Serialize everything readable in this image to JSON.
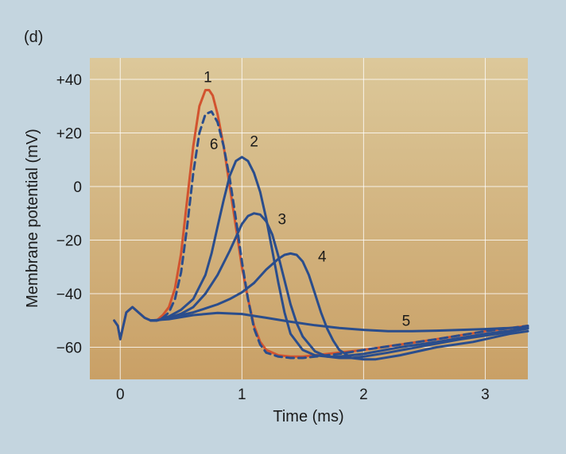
{
  "panel_label": "(d)",
  "chart_data": {
    "type": "line",
    "title": "",
    "xlabel": "Time (ms)",
    "ylabel": "Membrane potential (mV)",
    "xlim": [
      -0.25,
      3.35
    ],
    "ylim": [
      -72,
      48
    ],
    "xticks": [
      0,
      1,
      2,
      3
    ],
    "xtick_labels": [
      "0",
      "1",
      "2",
      "3"
    ],
    "yticks": [
      40,
      20,
      0,
      -20,
      -40,
      -60
    ],
    "ytick_labels": [
      "+40",
      "+20",
      "0",
      "−20",
      "−40",
      "−60"
    ],
    "grid": true,
    "colors": {
      "plot_top": "#dcc89a",
      "plot_bottom": "#c9a066",
      "grid": "#ffffff",
      "curve_red": "#d2532f",
      "curve_blue": "#2a4d8c"
    },
    "series": [
      {
        "name": "1",
        "color": "#d2532f",
        "dash": false,
        "label_at": [
          0.72,
          39
        ],
        "x": [
          -0.05,
          -0.02,
          0.0,
          0.02,
          0.05,
          0.1,
          0.15,
          0.2,
          0.25,
          0.3,
          0.35,
          0.4,
          0.45,
          0.5,
          0.55,
          0.6,
          0.65,
          0.7,
          0.73,
          0.76,
          0.8,
          0.85,
          0.9,
          0.95,
          1.0,
          1.05,
          1.1,
          1.15,
          1.2,
          1.3,
          1.4,
          1.5,
          1.6,
          1.8,
          2.0,
          2.3,
          2.6,
          3.0,
          3.35
        ],
        "y": [
          -50,
          -52,
          -57,
          -53,
          -47,
          -45,
          -47,
          -49,
          -50,
          -50,
          -48,
          -45,
          -38,
          -25,
          -5,
          15,
          30,
          36,
          36,
          34,
          27,
          15,
          0,
          -15,
          -30,
          -42,
          -52,
          -58,
          -61,
          -63,
          -63.5,
          -63.5,
          -63,
          -62,
          -61,
          -59,
          -57,
          -54,
          -52
        ]
      },
      {
        "name": "6",
        "color": "#2a4d8c",
        "dash": true,
        "label_at": [
          0.77,
          14
        ],
        "x": [
          0.25,
          0.3,
          0.35,
          0.4,
          0.45,
          0.5,
          0.55,
          0.6,
          0.65,
          0.7,
          0.75,
          0.8,
          0.85,
          0.9,
          0.95,
          1.0,
          1.05,
          1.1,
          1.15,
          1.2,
          1.3,
          1.4,
          1.5,
          1.6,
          1.8,
          2.0,
          2.3,
          2.6,
          3.0,
          3.35
        ],
        "y": [
          -50,
          -50,
          -49,
          -47,
          -42,
          -32,
          -15,
          5,
          20,
          27,
          28,
          24,
          15,
          3,
          -12,
          -28,
          -42,
          -53,
          -59,
          -62,
          -63.5,
          -64,
          -64,
          -63.5,
          -62.5,
          -61,
          -59,
          -57,
          -54,
          -52
        ]
      },
      {
        "name": "2",
        "color": "#2a4d8c",
        "dash": false,
        "label_at": [
          1.1,
          15
        ],
        "x": [
          0.25,
          0.3,
          0.4,
          0.5,
          0.6,
          0.7,
          0.75,
          0.8,
          0.85,
          0.9,
          0.95,
          1.0,
          1.05,
          1.1,
          1.15,
          1.2,
          1.25,
          1.3,
          1.35,
          1.4,
          1.5,
          1.6,
          1.7,
          1.8,
          1.9,
          2.0,
          2.3,
          2.6,
          3.0,
          3.35
        ],
        "y": [
          -50,
          -50,
          -48.5,
          -46,
          -42,
          -33,
          -25,
          -15,
          -5,
          4,
          9.5,
          11,
          9.5,
          5,
          -2,
          -12,
          -24,
          -36,
          -47,
          -55,
          -61,
          -63,
          -63.5,
          -63.5,
          -63,
          -62.5,
          -60,
          -58,
          -55,
          -53
        ]
      },
      {
        "name": "3",
        "color": "#2a4d8c",
        "dash": false,
        "label_at": [
          1.33,
          -14
        ],
        "x": [
          0.25,
          0.3,
          0.4,
          0.5,
          0.6,
          0.7,
          0.8,
          0.9,
          0.95,
          1.0,
          1.05,
          1.1,
          1.15,
          1.2,
          1.25,
          1.3,
          1.35,
          1.4,
          1.45,
          1.5,
          1.6,
          1.7,
          1.8,
          1.9,
          2.0,
          2.2,
          2.5,
          2.8,
          3.1,
          3.35
        ],
        "y": [
          -50,
          -50,
          -49,
          -47.5,
          -45,
          -40,
          -33,
          -24,
          -19,
          -14,
          -11,
          -10,
          -10.5,
          -13,
          -18,
          -26,
          -35,
          -44,
          -51,
          -56,
          -61.5,
          -63.5,
          -64,
          -64,
          -63.5,
          -62,
          -59.5,
          -57,
          -55,
          -53
        ]
      },
      {
        "name": "4",
        "color": "#2a4d8c",
        "dash": false,
        "label_at": [
          1.66,
          -28
        ],
        "x": [
          0.25,
          0.3,
          0.4,
          0.5,
          0.6,
          0.7,
          0.8,
          0.9,
          1.0,
          1.1,
          1.2,
          1.3,
          1.35,
          1.4,
          1.45,
          1.5,
          1.55,
          1.6,
          1.65,
          1.7,
          1.75,
          1.8,
          1.9,
          2.0,
          2.1,
          2.3,
          2.6,
          2.9,
          3.2,
          3.35
        ],
        "y": [
          -50,
          -50,
          -49,
          -48,
          -47,
          -45.5,
          -44,
          -42,
          -39.5,
          -36,
          -31,
          -27,
          -25.5,
          -25,
          -25.5,
          -28,
          -33,
          -40,
          -47,
          -53,
          -57.5,
          -61,
          -64,
          -64.5,
          -64.5,
          -63,
          -60,
          -58,
          -55,
          -54
        ]
      },
      {
        "name": "5",
        "color": "#2a4d8c",
        "dash": false,
        "label_at": [
          2.35,
          -52
        ],
        "x": [
          -0.05,
          -0.02,
          0.0,
          0.02,
          0.05,
          0.1,
          0.15,
          0.2,
          0.25,
          0.4,
          0.6,
          0.8,
          1.0,
          1.2,
          1.4,
          1.6,
          1.8,
          2.0,
          2.2,
          2.4,
          2.6,
          2.8,
          3.0,
          3.2,
          3.35
        ],
        "y": [
          -50,
          -52,
          -57,
          -53,
          -47,
          -45,
          -47,
          -49,
          -50,
          -49.5,
          -48,
          -47.2,
          -47.6,
          -49,
          -50.5,
          -51.8,
          -52.8,
          -53.5,
          -54,
          -54,
          -53.8,
          -53.5,
          -53.2,
          -52.8,
          -52.5
        ]
      }
    ]
  }
}
